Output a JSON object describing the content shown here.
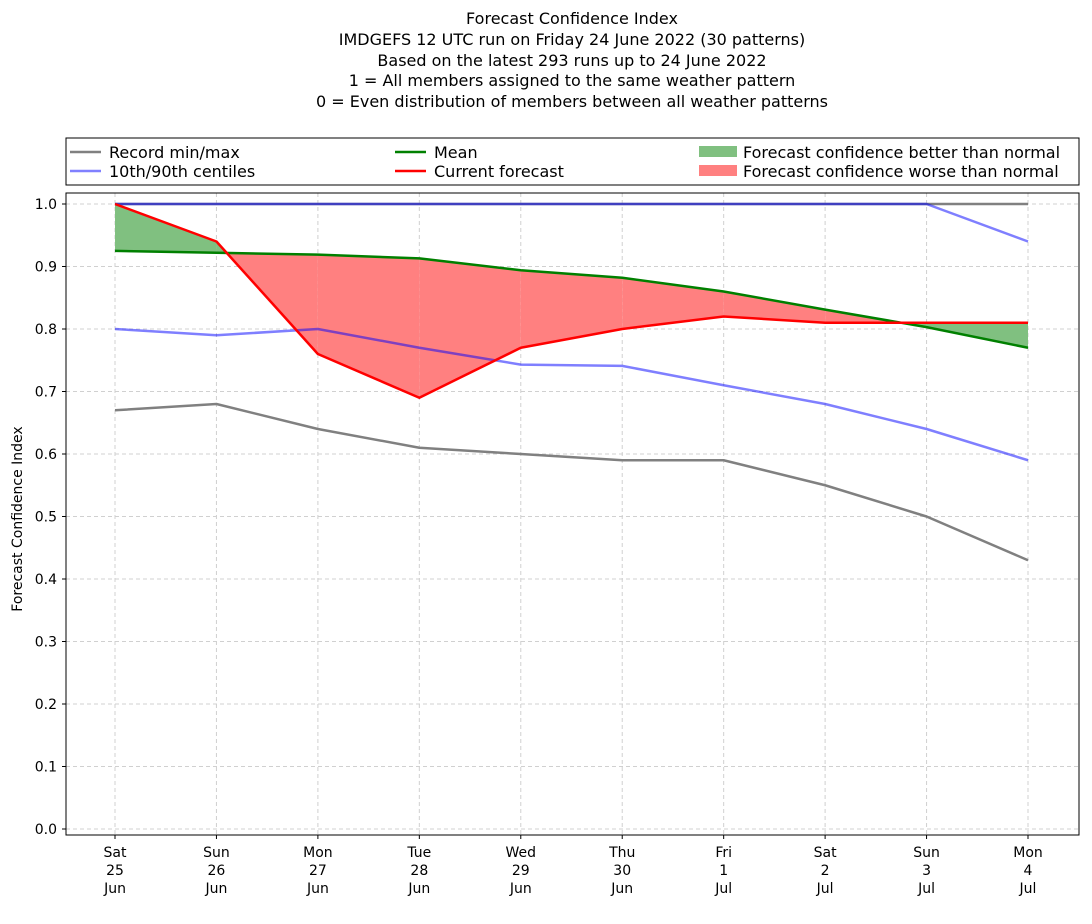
{
  "chart_data": {
    "type": "line",
    "title_lines": [
      "Forecast Confidence Index",
      "IMDGEFS 12 UTC run on Friday 24 June 2022 (30 patterns)",
      "Based on the latest 293 runs up to 24 June 2022",
      "1 = All members assigned to the same weather pattern",
      "0 = Even distribution of members between all weather patterns"
    ],
    "ylabel": "Forecast Confidence Index",
    "xlabel": "",
    "ylim": [
      0,
      1
    ],
    "yticks": [
      "0.0",
      "0.1",
      "0.2",
      "0.3",
      "0.4",
      "0.5",
      "0.6",
      "0.7",
      "0.8",
      "0.9",
      "1.0"
    ],
    "grid": true,
    "legend_placement": "top, above plot",
    "categories": [
      [
        "Sat",
        "25",
        "Jun"
      ],
      [
        "Sun",
        "26",
        "Jun"
      ],
      [
        "Mon",
        "27",
        "Jun"
      ],
      [
        "Tue",
        "28",
        "Jun"
      ],
      [
        "Wed",
        "29",
        "Jun"
      ],
      [
        "Thu",
        "30",
        "Jun"
      ],
      [
        "Fri",
        "1",
        "Jul"
      ],
      [
        "Sat",
        "2",
        "Jul"
      ],
      [
        "Sun",
        "3",
        "Jul"
      ],
      [
        "Mon",
        "4",
        "Jul"
      ]
    ],
    "series": [
      {
        "name": "Record min/max",
        "part": "min",
        "color": "#808080",
        "values": [
          0.67,
          0.68,
          0.64,
          0.61,
          0.6,
          0.59,
          0.59,
          0.55,
          0.5,
          0.43
        ]
      },
      {
        "name": "Record min/max",
        "part": "max",
        "color": "#808080",
        "values": [
          1,
          1,
          1,
          1,
          1,
          1,
          1,
          1,
          1,
          1
        ]
      },
      {
        "name": "10th/90th centiles",
        "part": "10th",
        "color": "#8080ff",
        "values": [
          0.8,
          0.79,
          0.8,
          0.77,
          0.743,
          0.741,
          0.71,
          0.68,
          0.64,
          0.59
        ]
      },
      {
        "name": "10th/90th centiles",
        "part": "90th",
        "color": "#8080ff",
        "values": [
          1,
          1,
          1,
          1,
          1,
          1,
          1,
          1,
          1,
          0.94
        ]
      },
      {
        "name": "Mean",
        "color": "#008000",
        "values": [
          0.925,
          0.922,
          0.919,
          0.913,
          0.894,
          0.882,
          0.86,
          0.831,
          0.803,
          0.77
        ]
      },
      {
        "name": "Current forecast",
        "color": "#ff0000",
        "values": [
          1.0,
          0.94,
          0.76,
          0.69,
          0.77,
          0.8,
          0.82,
          0.81,
          0.81,
          0.81
        ]
      }
    ],
    "fills": [
      {
        "name": "Forecast confidence better than normal",
        "color": "#80c080"
      },
      {
        "name": "Forecast confidence worse than normal",
        "color": "#ff8080"
      }
    ]
  }
}
